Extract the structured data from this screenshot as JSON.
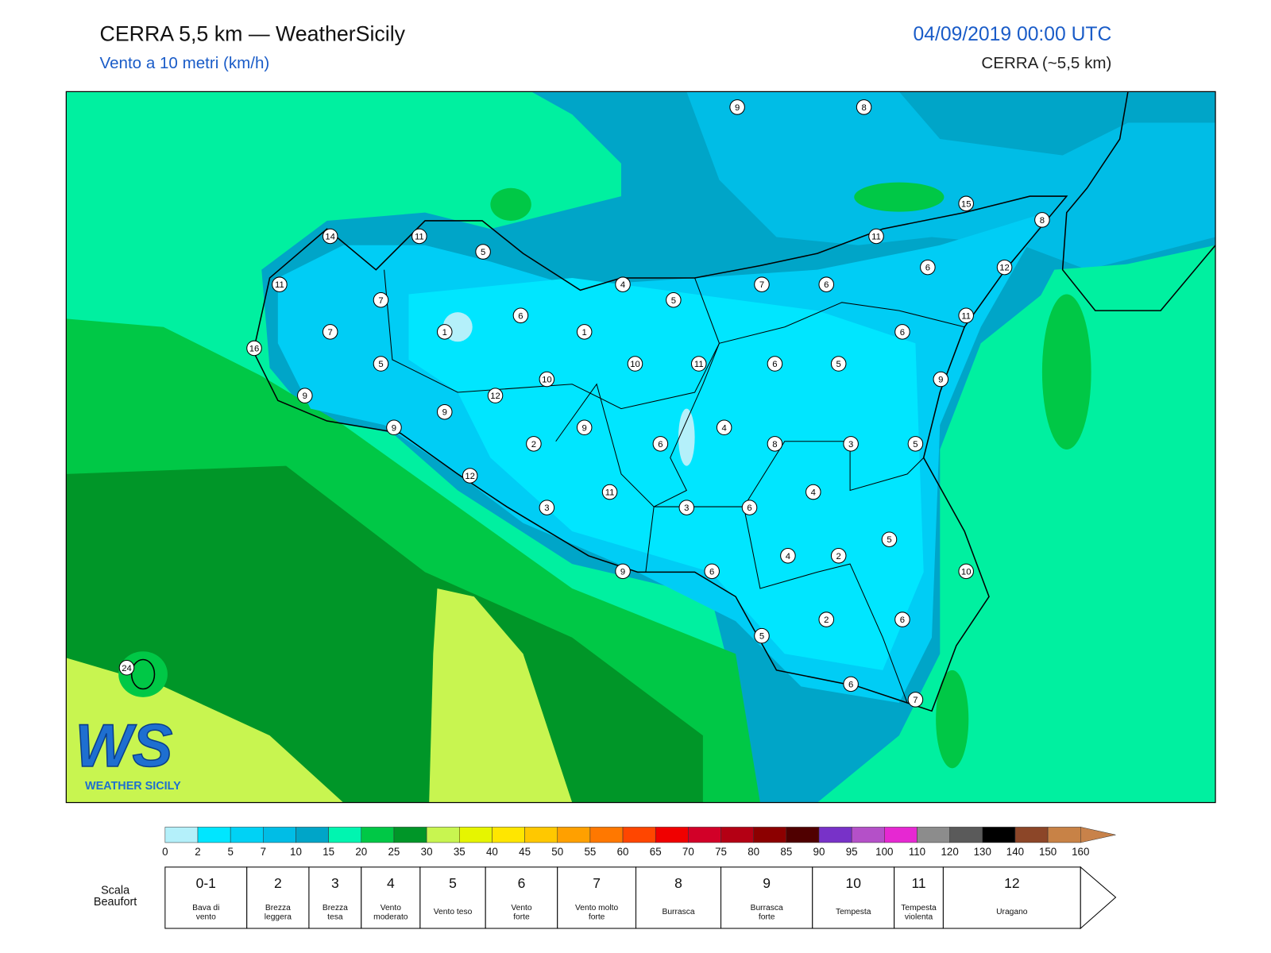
{
  "header": {
    "title": "CERRA 5,5 km — WeatherSicily",
    "subtitle": "Vento a 10 metri (km/h)",
    "datetime": "04/09/2019 00:00 UTC",
    "model": "CERRA (~5,5 km)"
  },
  "map": {
    "stations": [
      9,
      8,
      15,
      8,
      14,
      11,
      5,
      11,
      6,
      12,
      11,
      4,
      7,
      6,
      7,
      5,
      6,
      11,
      7,
      1,
      1,
      6,
      16,
      5,
      10,
      11,
      6,
      5,
      10,
      9,
      9,
      12,
      9,
      9,
      9,
      4,
      2,
      6,
      8,
      3,
      5,
      12,
      4,
      11,
      3,
      3,
      6,
      5,
      4,
      2,
      9,
      6,
      10,
      2,
      6,
      5,
      6,
      7,
      24
    ]
  },
  "colorbar": {
    "ticks": [
      0,
      2,
      5,
      7,
      10,
      15,
      20,
      25,
      30,
      35,
      40,
      45,
      50,
      55,
      60,
      65,
      70,
      75,
      80,
      85,
      90,
      95,
      100,
      110,
      120,
      130,
      140,
      150,
      160
    ],
    "colors": [
      "#b4f0fa",
      "#00e6ff",
      "#00d2f5",
      "#00bde6",
      "#00a5c8",
      "#00f5b0",
      "#00c846",
      "#009628",
      "#c8f550",
      "#e6f500",
      "#ffe600",
      "#ffc800",
      "#ffa000",
      "#ff7800",
      "#ff4600",
      "#f00000",
      "#d20028",
      "#b40014",
      "#8c0000",
      "#500000",
      "#7832c8",
      "#b450c8",
      "#e628d2",
      "#8c8c8c",
      "#5a5a5a",
      "#000000",
      "#8c4628",
      "#c88246",
      "#c8824a"
    ]
  },
  "beaufort": {
    "label": [
      "Scala",
      "Beaufort"
    ],
    "scale": [
      {
        "force": "0-1",
        "description": [
          "Bava di",
          "vento"
        ]
      },
      {
        "force": 2,
        "description": [
          "Brezza",
          "leggera"
        ]
      },
      {
        "force": 3,
        "description": [
          "Brezza",
          "tesa"
        ]
      },
      {
        "force": 4,
        "description": [
          "Vento",
          "moderato"
        ]
      },
      {
        "force": 5,
        "description": [
          "Vento teso"
        ]
      },
      {
        "force": 6,
        "description": [
          "Vento",
          "forte"
        ]
      },
      {
        "force": 7,
        "description": [
          "Vento molto",
          "forte"
        ]
      },
      {
        "force": 8,
        "description": [
          "Burrasca"
        ]
      },
      {
        "force": 9,
        "description": [
          "Burrasca",
          "forte"
        ]
      },
      {
        "force": 10,
        "description": [
          "Tempesta"
        ]
      },
      {
        "force": 11,
        "description": [
          "Tempesta",
          "violenta"
        ]
      },
      {
        "force": 12,
        "description": [
          "Uragano"
        ]
      }
    ]
  },
  "logo": {
    "mark": "WS",
    "name": "WEATHER SICILY"
  }
}
